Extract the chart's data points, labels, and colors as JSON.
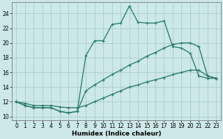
{
  "xlabel": "Humidex (Indice chaleur)",
  "bg_color": "#cce8e8",
  "grid_color": "#aacccc",
  "line_color": "#2e7d6e",
  "xlim": [
    0,
    23
  ],
  "ylim": [
    10,
    25
  ],
  "xticks": [
    0,
    1,
    2,
    3,
    4,
    5,
    6,
    7,
    8,
    9,
    10,
    11,
    12,
    13,
    14,
    15,
    16,
    17,
    18,
    19,
    20,
    21,
    22,
    23
  ],
  "yticks": [
    10,
    12,
    14,
    16,
    18,
    20,
    22,
    24
  ],
  "line1_y": [
    12.0,
    11.5,
    11.2,
    11.2,
    11.2,
    10.7,
    10.5,
    10.7,
    18.3,
    20.3,
    20.3,
    22.5,
    22.7,
    25.0,
    22.8,
    22.7,
    22.7,
    23.0,
    19.5,
    19.3,
    18.6,
    15.5,
    15.2,
    15.2
  ],
  "line2_y": [
    12.0,
    11.5,
    11.2,
    11.2,
    11.2,
    10.7,
    10.5,
    10.7,
    13.5,
    14.3,
    15.0,
    15.7,
    16.3,
    17.0,
    17.5,
    18.2,
    18.7,
    19.3,
    19.8,
    20.0,
    20.0,
    19.5,
    15.5,
    15.2
  ],
  "line3_y": [
    12.0,
    11.8,
    11.5,
    11.5,
    11.5,
    11.3,
    11.2,
    11.2,
    11.5,
    12.0,
    12.5,
    13.0,
    13.5,
    14.0,
    14.3,
    14.7,
    15.0,
    15.3,
    15.7,
    16.0,
    16.3,
    16.3,
    15.5,
    15.2
  ],
  "marker_size": 3.5,
  "lw": 1.0,
  "axis_fontsize": 6.5,
  "tick_fontsize": 5.5
}
